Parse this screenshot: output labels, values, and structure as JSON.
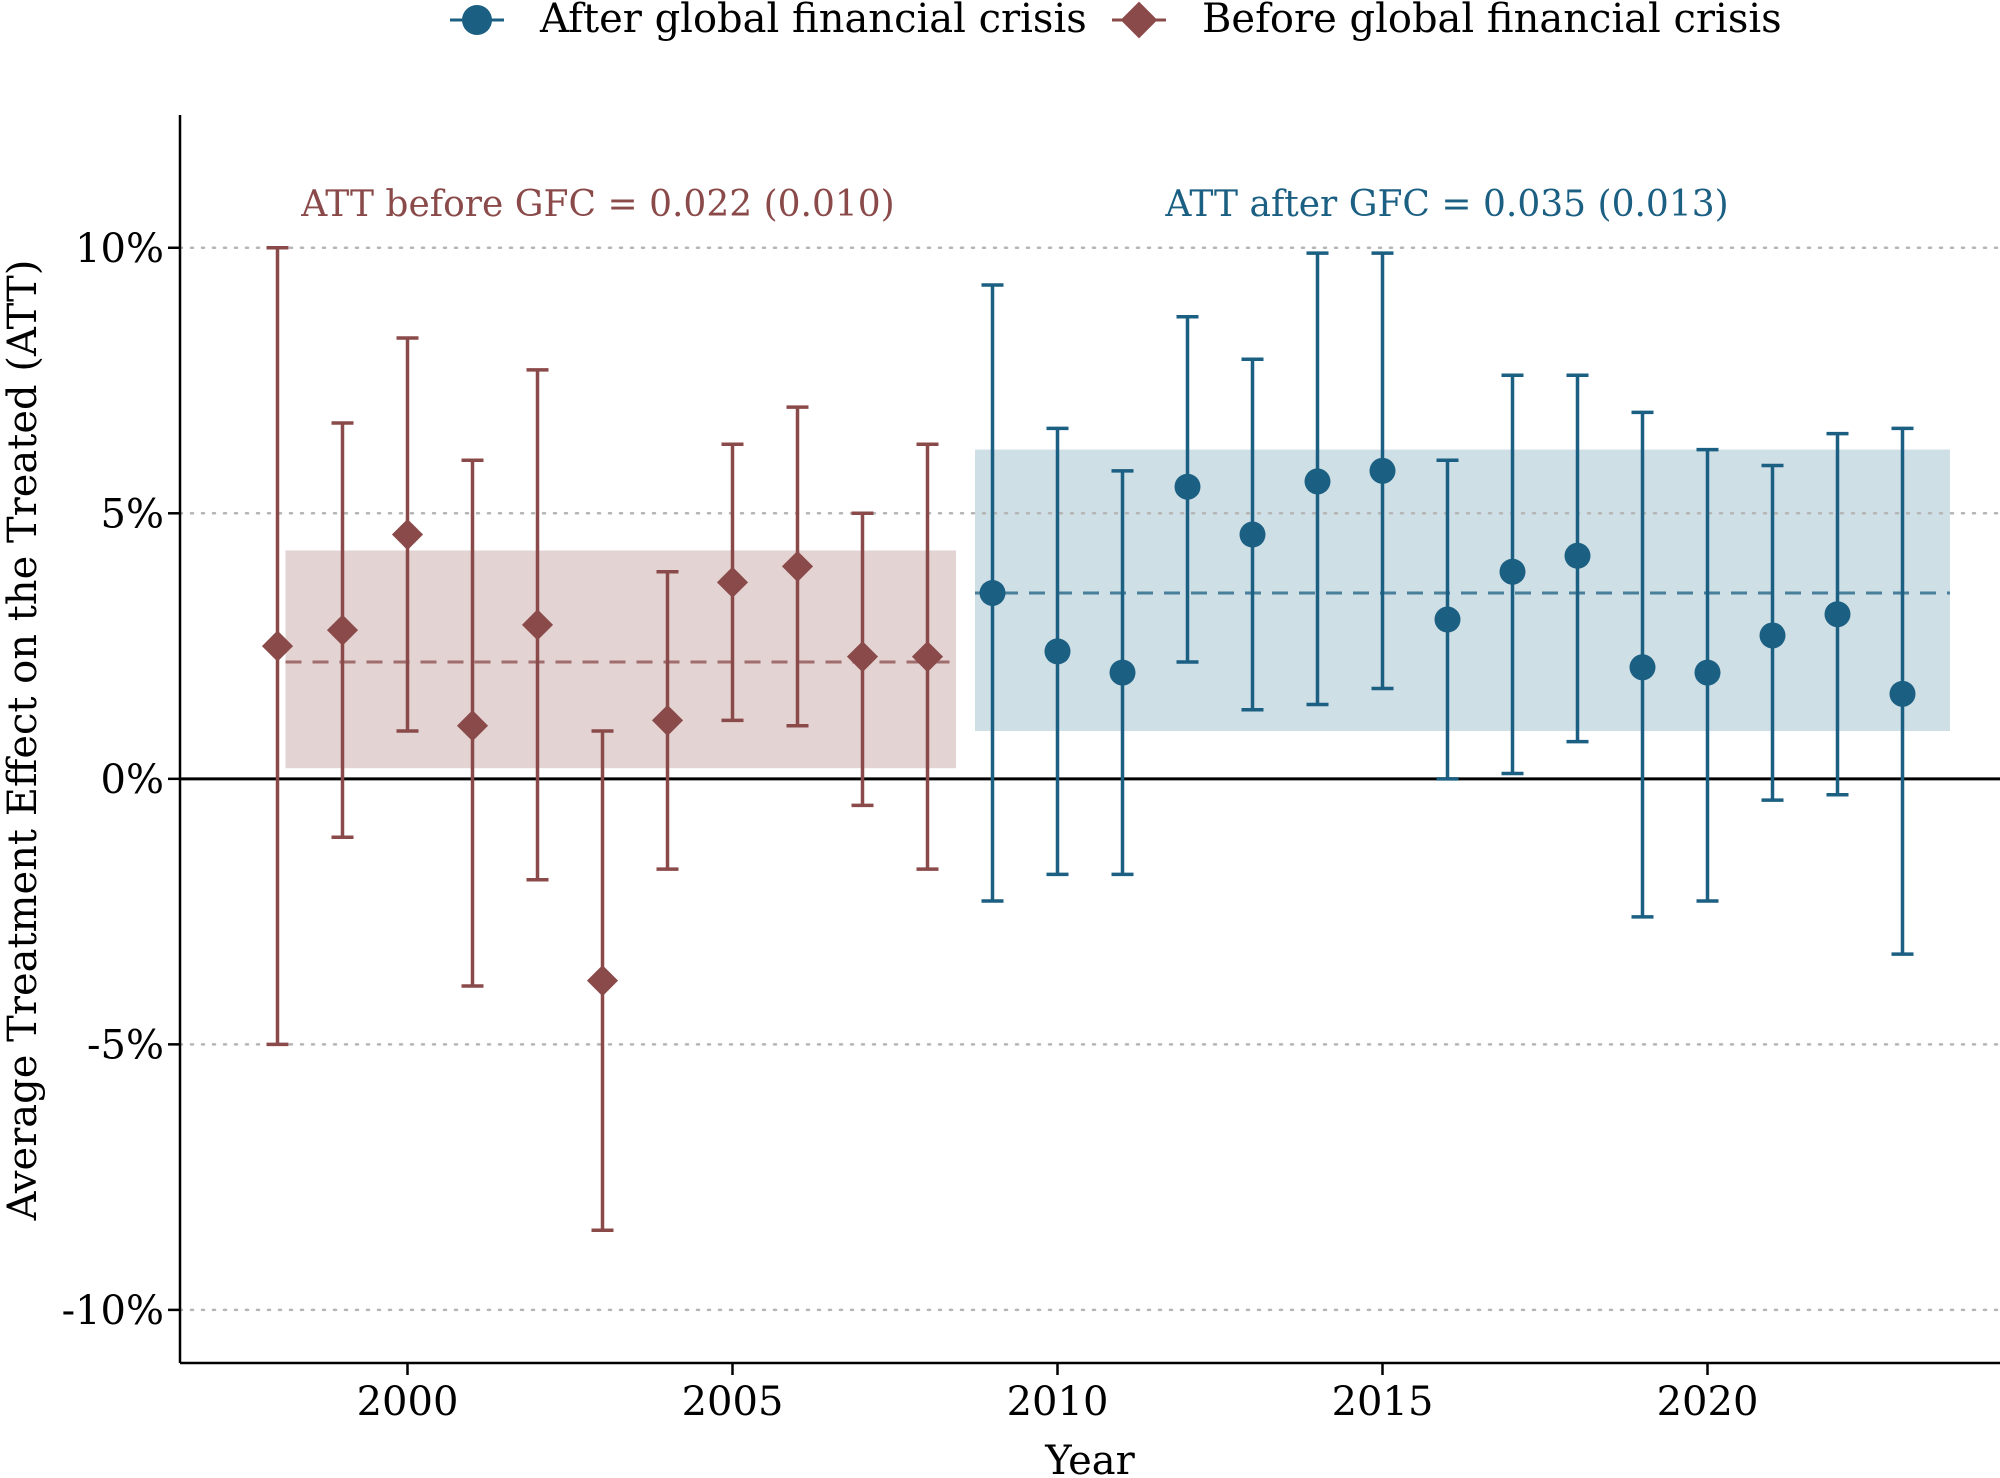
{
  "colors": {
    "before": "#8b4a4a",
    "after": "#1b5f82",
    "before_band": "#e3d3d3",
    "after_band": "#cfdfe6",
    "gridline": "#b5b5b5",
    "axis": "#000000"
  },
  "chart_data": {
    "type": "scatter",
    "subtype": "point-estimates-with-confidence-intervals",
    "xlabel": "Year",
    "ylabel": "Average Treatment Effect on the Treated (ATT)",
    "xlim": [
      1996.5,
      2024.5
    ],
    "ylim": [
      -11,
      12.5
    ],
    "xticks": [
      2000,
      2005,
      2010,
      2015,
      2020
    ],
    "yticks": [
      -10,
      -5,
      0,
      5,
      10
    ],
    "ytick_labels": [
      "-10%",
      "-5%",
      "0%",
      "5%",
      "10%"
    ],
    "grid": "horizontal dotted",
    "legend": {
      "position": "top-center",
      "entries": [
        "After global financial crisis",
        "Before global financial crisis"
      ]
    },
    "series": [
      {
        "name": "Before global financial crisis",
        "marker": "diamond",
        "points": [
          {
            "x": 1998,
            "y": 2.5,
            "lo": -5.0,
            "hi": 10.0
          },
          {
            "x": 1999,
            "y": 2.8,
            "lo": -1.1,
            "hi": 6.7
          },
          {
            "x": 2000,
            "y": 4.6,
            "lo": 0.9,
            "hi": 8.3
          },
          {
            "x": 2001,
            "y": 1.0,
            "lo": -3.9,
            "hi": 6.0
          },
          {
            "x": 2002,
            "y": 2.9,
            "lo": -1.9,
            "hi": 7.7
          },
          {
            "x": 2003,
            "y": -3.8,
            "lo": -8.5,
            "hi": 0.9
          },
          {
            "x": 2004,
            "y": 1.1,
            "lo": -1.7,
            "hi": 3.9
          },
          {
            "x": 2005,
            "y": 3.7,
            "lo": 1.1,
            "hi": 6.3
          },
          {
            "x": 2006,
            "y": 4.0,
            "lo": 1.0,
            "hi": 7.0
          },
          {
            "x": 2007,
            "y": 2.3,
            "lo": -0.5,
            "hi": 5.0
          },
          {
            "x": 2008,
            "y": 2.3,
            "lo": -1.7,
            "hi": 6.3
          }
        ],
        "average": {
          "label": "ATT before GFC = 0.022 (0.010)",
          "value": 2.2,
          "band": [
            0.2,
            4.3
          ],
          "x_range": [
            1998,
            2008
          ]
        }
      },
      {
        "name": "After global financial crisis",
        "marker": "circle",
        "points": [
          {
            "x": 2009,
            "y": 3.5,
            "lo": -2.3,
            "hi": 9.3
          },
          {
            "x": 2010,
            "y": 2.4,
            "lo": -1.8,
            "hi": 6.6
          },
          {
            "x": 2011,
            "y": 2.0,
            "lo": -1.8,
            "hi": 5.8
          },
          {
            "x": 2012,
            "y": 5.5,
            "lo": 2.2,
            "hi": 8.7
          },
          {
            "x": 2013,
            "y": 4.6,
            "lo": 1.3,
            "hi": 7.9
          },
          {
            "x": 2014,
            "y": 5.6,
            "lo": 1.4,
            "hi": 9.9
          },
          {
            "x": 2015,
            "y": 5.8,
            "lo": 1.7,
            "hi": 9.9
          },
          {
            "x": 2016,
            "y": 3.0,
            "lo": 0.0,
            "hi": 6.0
          },
          {
            "x": 2017,
            "y": 3.9,
            "lo": 0.1,
            "hi": 7.6
          },
          {
            "x": 2018,
            "y": 4.2,
            "lo": 0.7,
            "hi": 7.6
          },
          {
            "x": 2019,
            "y": 2.1,
            "lo": -2.6,
            "hi": 6.9
          },
          {
            "x": 2020,
            "y": 2.0,
            "lo": -2.3,
            "hi": 6.2
          },
          {
            "x": 2021,
            "y": 2.7,
            "lo": -0.4,
            "hi": 5.9
          },
          {
            "x": 2022,
            "y": 3.1,
            "lo": -0.3,
            "hi": 6.5
          },
          {
            "x": 2023,
            "y": 1.6,
            "lo": -3.3,
            "hi": 6.6
          }
        ],
        "average": {
          "label": "ATT after GFC = 0.035 (0.013)",
          "value": 3.5,
          "band": [
            0.9,
            6.2
          ],
          "x_range": [
            2009,
            2023
          ]
        }
      }
    ]
  }
}
